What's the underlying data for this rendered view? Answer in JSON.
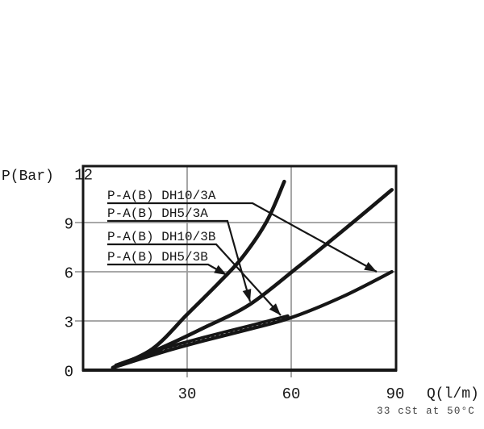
{
  "figure": {
    "background": "#ffffff",
    "ink_color": "#161616",
    "grid_color": "#9c9c9c",
    "footnote_color": "#3f3f3f"
  },
  "chart_data": {
    "type": "line",
    "title": "",
    "xlabel": "Q(l/m)",
    "ylabel": "P(Bar)",
    "xlim": [
      0,
      90
    ],
    "ylim": [
      0,
      12.4
    ],
    "x_ticks": [
      30,
      60,
      90
    ],
    "y_ticks": [
      12,
      9,
      6,
      3,
      0
    ],
    "grid": true,
    "note": "33 cSt at 50°C",
    "legend_entries": [
      "P-A(B) DH10/3A",
      "P-A(B) DH5/3A",
      "P-A(B) DH10/3B",
      "P-A(B) DH5/3B"
    ],
    "series": [
      {
        "name": "P-A(B) DH10/3A",
        "points": [
          [
            8.6,
            0.15
          ],
          [
            23,
            1.1
          ],
          [
            35,
            1.8
          ],
          [
            48,
            2.5
          ],
          [
            60,
            3.2
          ],
          [
            75,
            4.5
          ],
          [
            89,
            6.0
          ]
        ]
      },
      {
        "name": "P-A(B) DH5/3A",
        "points": [
          [
            8.6,
            0.15
          ],
          [
            23,
            1.4
          ],
          [
            35,
            2.6
          ],
          [
            48,
            4.0
          ],
          [
            62,
            6.3
          ],
          [
            76,
            8.7
          ],
          [
            89,
            11.0
          ]
        ]
      },
      {
        "name": "P-A(B) DH10/3B",
        "points": [
          [
            9.5,
            0.3
          ],
          [
            23,
            1.3
          ],
          [
            35,
            2.0
          ],
          [
            48,
            2.7
          ],
          [
            59,
            3.3
          ]
        ]
      },
      {
        "name": "P-A(B) DH5/3B",
        "points": [
          [
            8.6,
            0.15
          ],
          [
            20,
            1.3
          ],
          [
            30,
            3.4
          ],
          [
            39,
            5.3
          ],
          [
            46,
            6.9
          ],
          [
            53,
            9.1
          ],
          [
            58,
            11.5
          ]
        ]
      }
    ]
  }
}
